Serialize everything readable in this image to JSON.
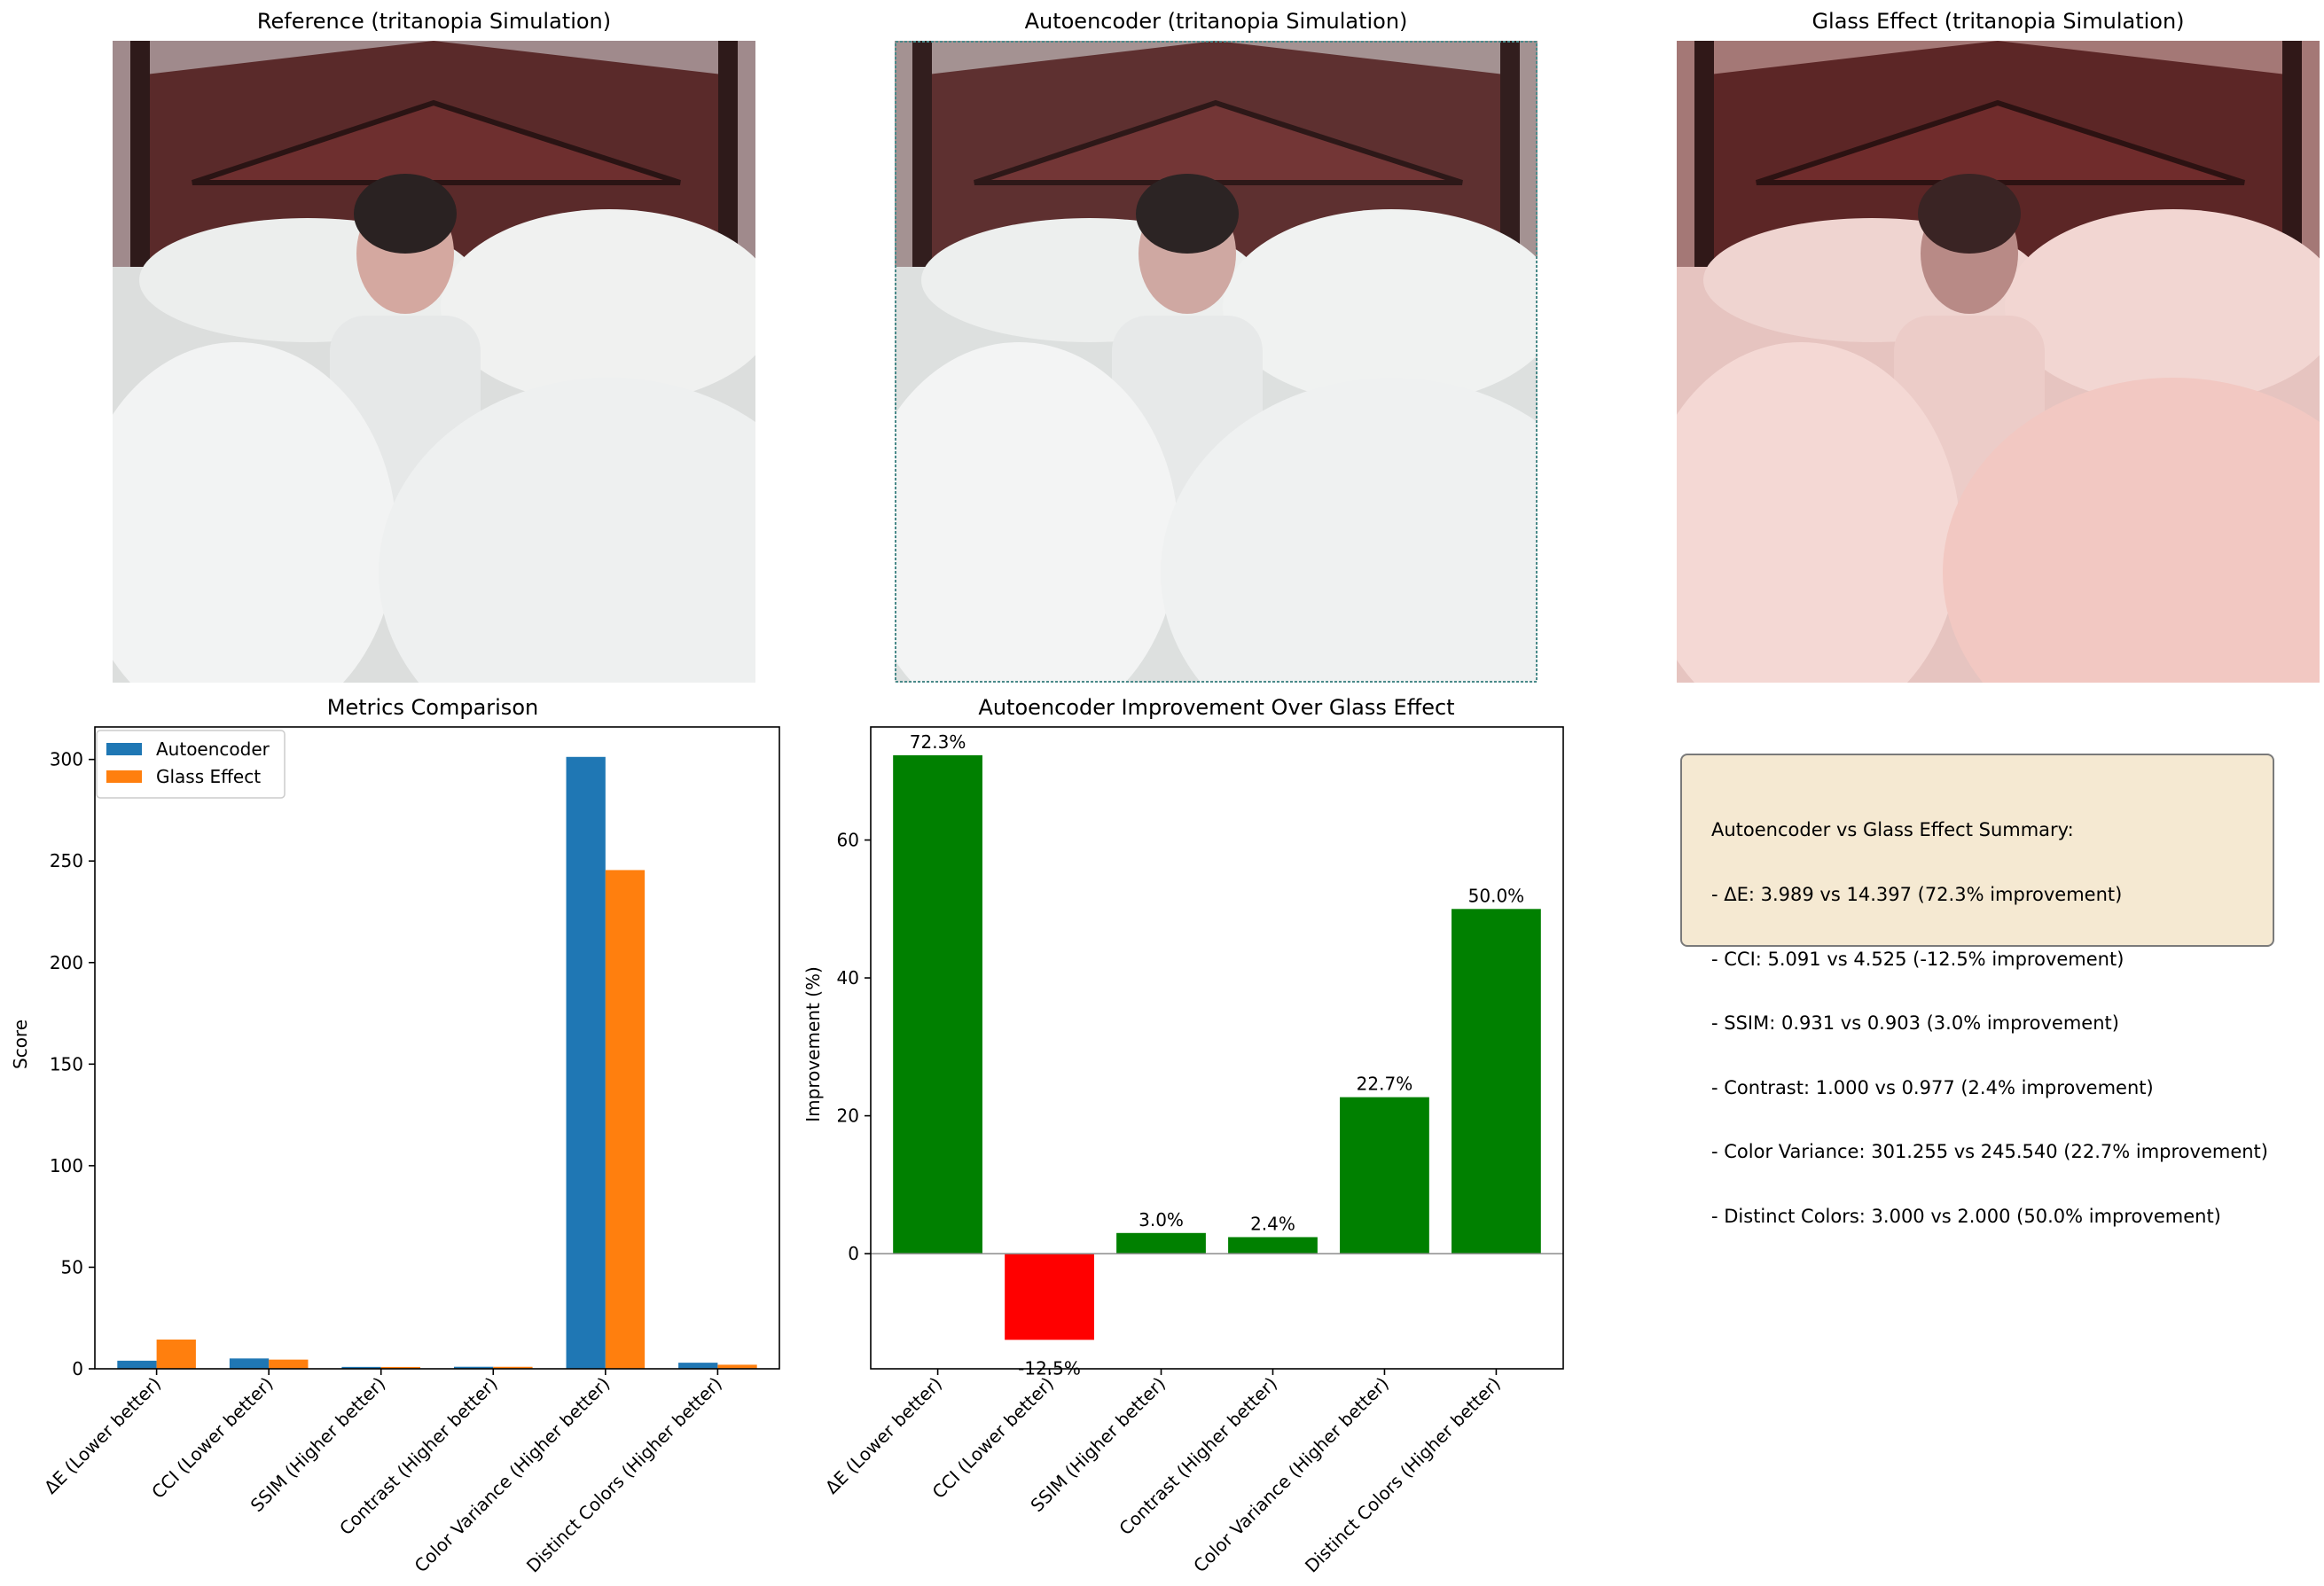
{
  "images": [
    {
      "title": "Reference (tritanopia Simulation)",
      "tint": "neutral"
    },
    {
      "title": "Autoencoder (tritanopia Simulation)",
      "tint": "cool"
    },
    {
      "title": "Glass Effect (tritanopia Simulation)",
      "tint": "pink"
    }
  ],
  "chart_data": [
    {
      "type": "bar",
      "title": "Metrics Comparison",
      "xlabel": "",
      "ylabel": "Score",
      "categories": [
        "ΔE (Lower better)",
        "CCI (Lower better)",
        "SSIM (Higher better)",
        "Contrast (Higher better)",
        "Color Variance (Higher better)",
        "Distinct Colors (Higher better)"
      ],
      "series": [
        {
          "name": "Autoencoder",
          "color": "#1f77b4",
          "values": [
            3.989,
            5.091,
            0.931,
            1.0,
            301.255,
            3.0
          ]
        },
        {
          "name": "Glass Effect",
          "color": "#ff7f0e",
          "values": [
            14.397,
            4.525,
            0.903,
            0.977,
            245.54,
            2.0
          ]
        }
      ],
      "ylim": [
        0,
        316
      ],
      "yticks": [
        0,
        50,
        100,
        150,
        200,
        250,
        300
      ],
      "legend": "top-left",
      "grid": false
    },
    {
      "type": "bar",
      "title": "Autoencoder Improvement Over Glass Effect",
      "xlabel": "",
      "ylabel": "Improvement (%)",
      "categories": [
        "ΔE (Lower better)",
        "CCI (Lower better)",
        "SSIM (Higher better)",
        "Contrast (Higher better)",
        "Color Variance (Higher better)",
        "Distinct Colors (Higher better)"
      ],
      "values": [
        72.3,
        -12.5,
        3.0,
        2.4,
        22.7,
        50.0
      ],
      "labels": [
        "72.3%",
        "-12.5%",
        "3.0%",
        "2.4%",
        "22.7%",
        "50.0%"
      ],
      "positive_color": "#008000",
      "negative_color": "#ff0000",
      "ylim": [
        -16.7,
        76.4
      ],
      "yticks": [
        0,
        20,
        40,
        60
      ],
      "grid": false
    }
  ],
  "summary": {
    "lines": [
      "Autoencoder vs Glass Effect Summary:",
      "- ΔE: 3.989 vs 14.397 (72.3% improvement)",
      "- CCI: 5.091 vs 4.525 (-12.5% improvement)",
      "- SSIM: 0.931 vs 0.903 (3.0% improvement)",
      "- Contrast: 1.000 vs 0.977 (2.4% improvement)",
      "- Color Variance: 301.255 vs 245.540 (22.7% improvement)",
      "- Distinct Colors: 3.000 vs 2.000 (50.0% improvement)"
    ]
  }
}
